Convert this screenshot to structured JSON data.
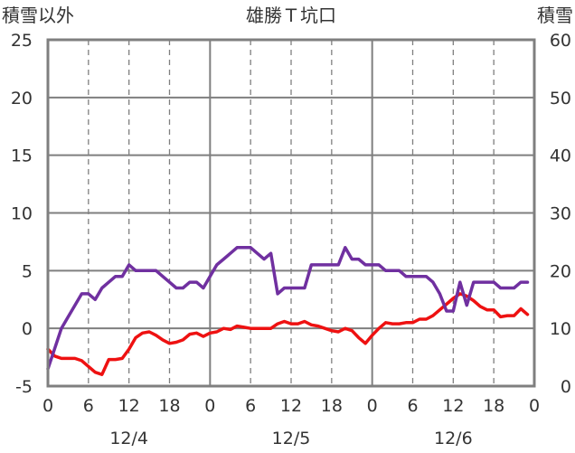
{
  "chart_data": {
    "type": "line",
    "title": "雄勝Ｔ坑口",
    "left_axis": {
      "label": "積雪以外",
      "ylim": [
        -5,
        25
      ],
      "ticks": [
        "25",
        "20",
        "15",
        "10",
        "5",
        "0",
        "-5"
      ]
    },
    "right_axis": {
      "label": "積雪",
      "ylim": [
        0,
        60
      ],
      "ticks": [
        "60",
        "50",
        "40",
        "30",
        "20",
        "10",
        "0"
      ]
    },
    "x_axis": {
      "hour_ticks": [
        "0",
        "6",
        "12",
        "18",
        "0",
        "6",
        "12",
        "18",
        "0",
        "6",
        "12",
        "18",
        "0"
      ],
      "date_labels": [
        "12/4",
        "12/5",
        "12/6"
      ],
      "xlim_hours": [
        0,
        72
      ]
    },
    "grid": true,
    "series": [
      {
        "axis": "left",
        "color": "#ee1111",
        "x": [
          0,
          1,
          2,
          3,
          4,
          5,
          6,
          7,
          8,
          9,
          10,
          11,
          12,
          13,
          14,
          15,
          16,
          17,
          18,
          19,
          20,
          21,
          22,
          23,
          24,
          25,
          26,
          27,
          28,
          29,
          30,
          31,
          32,
          33,
          34,
          35,
          36,
          37,
          38,
          39,
          40,
          41,
          42,
          43,
          44,
          45,
          46,
          47,
          48,
          49,
          50,
          51,
          52,
          53,
          54,
          55,
          56,
          57,
          58,
          59,
          60,
          61,
          62,
          63,
          64,
          65,
          66,
          67,
          68,
          69,
          70,
          71
        ],
        "values": [
          -1.8,
          -2.4,
          -2.6,
          -2.6,
          -2.6,
          -2.8,
          -3.3,
          -3.8,
          -4.0,
          -2.7,
          -2.7,
          -2.6,
          -1.8,
          -0.8,
          -0.4,
          -0.3,
          -0.6,
          -1.0,
          -1.3,
          -1.2,
          -1.0,
          -0.5,
          -0.4,
          -0.7,
          -0.4,
          -0.3,
          0.0,
          -0.1,
          0.2,
          0.1,
          0.0,
          0.0,
          0.0,
          0.0,
          0.4,
          0.6,
          0.4,
          0.4,
          0.6,
          0.3,
          0.2,
          0.0,
          -0.2,
          -0.3,
          0.0,
          -0.2,
          -0.8,
          -1.3,
          -0.6,
          0.0,
          0.5,
          0.4,
          0.4,
          0.5,
          0.5,
          0.8,
          0.8,
          1.1,
          1.6,
          2.1,
          2.6,
          3.0,
          2.8,
          2.4,
          1.9,
          1.6,
          1.6,
          1.0,
          1.1,
          1.1,
          1.7,
          1.2
        ]
      },
      {
        "axis": "right",
        "color": "#7030a0",
        "x": [
          0,
          1,
          2,
          3,
          4,
          5,
          6,
          7,
          8,
          9,
          10,
          11,
          12,
          13,
          14,
          15,
          16,
          17,
          18,
          19,
          20,
          21,
          22,
          23,
          24,
          25,
          26,
          27,
          28,
          29,
          30,
          31,
          32,
          33,
          34,
          35,
          36,
          37,
          38,
          39,
          40,
          41,
          42,
          43,
          44,
          45,
          46,
          47,
          48,
          49,
          50,
          51,
          52,
          53,
          54,
          55,
          56,
          57,
          58,
          59,
          60,
          61,
          62,
          63,
          64,
          65,
          66,
          67,
          68,
          69,
          70,
          71
        ],
        "values": [
          3,
          6.5,
          10,
          12,
          14,
          16,
          16,
          15,
          17,
          18,
          19,
          19,
          21,
          20,
          20,
          20,
          20,
          19,
          18,
          17,
          17,
          18,
          18,
          17,
          19,
          21,
          22,
          23,
          24,
          24,
          24,
          23,
          22,
          23,
          16,
          17,
          17,
          17,
          17,
          21,
          21,
          21,
          21,
          21,
          24,
          22,
          22,
          21,
          21,
          21,
          20,
          20,
          20,
          19,
          19,
          19,
          19,
          18,
          16,
          13,
          13,
          18,
          14,
          18,
          18,
          18,
          18,
          17,
          17,
          17,
          18,
          18
        ]
      }
    ]
  }
}
